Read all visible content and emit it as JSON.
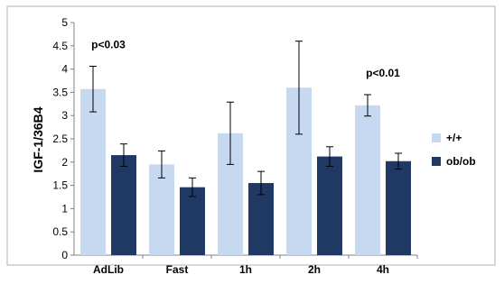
{
  "chart_data": {
    "type": "bar",
    "categories": [
      "AdLib",
      "Fast",
      "1h",
      "2h",
      "4h"
    ],
    "series": [
      {
        "name": "+/+",
        "color": "#c6d9f1",
        "values": [
          3.57,
          1.95,
          2.62,
          3.6,
          3.22
        ],
        "errors": [
          0.49,
          0.29,
          0.67,
          1.0,
          0.23
        ]
      },
      {
        "name": "ob/ob",
        "color": "#1f3864",
        "values": [
          2.15,
          1.46,
          1.55,
          2.12,
          2.02
        ],
        "errors": [
          0.24,
          0.2,
          0.25,
          0.21,
          0.17
        ]
      }
    ],
    "ylabel": "IGF-1/36B4",
    "xlabel": "",
    "ylim": [
      0,
      5
    ],
    "yticks": [
      "0",
      "0.5",
      "1",
      "1.5",
      "2",
      "2.5",
      "3",
      "3.5",
      "4",
      "4.5",
      "5"
    ],
    "grid": false,
    "legend_placement": "right",
    "annotations": [
      {
        "text": "p<0.03",
        "category": "AdLib"
      },
      {
        "text": "p<0.01",
        "category": "4h"
      }
    ]
  }
}
